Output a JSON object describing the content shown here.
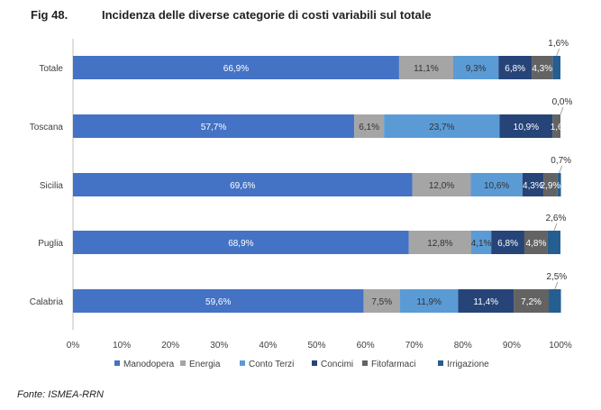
{
  "figure": {
    "number": "Fig 48.",
    "title": "Incidenza delle diverse categorie di costi variabili sul totale",
    "source": "Fonte: ISMEA-RRN"
  },
  "chart_data": {
    "type": "bar",
    "orientation": "horizontal",
    "stacked": true,
    "categories": [
      "Totale",
      "Toscana",
      "Sicilia",
      "Puglia",
      "Calabria"
    ],
    "series": [
      {
        "name": "Manodopera",
        "color": "#4472C4",
        "label_color": "#ffffff",
        "values": [
          66.9,
          57.7,
          69.6,
          68.9,
          59.6
        ],
        "labels": [
          "66,9%",
          "57,7%",
          "69,6%",
          "68,9%",
          "59,6%"
        ]
      },
      {
        "name": "Energia",
        "color": "#A5A5A5",
        "label_color": "#333333",
        "values": [
          11.1,
          6.1,
          12.0,
          12.8,
          7.5
        ],
        "labels": [
          "11,1%",
          "6,1%",
          "12,0%",
          "12,8%",
          "7,5%"
        ]
      },
      {
        "name": "Conto Terzi",
        "color": "#5B9BD5",
        "label_color": "#333333",
        "values": [
          9.3,
          23.7,
          10.6,
          4.1,
          11.9
        ],
        "labels": [
          "9,3%",
          "23,7%",
          "10,6%",
          "4,1%",
          "11,9%"
        ]
      },
      {
        "name": "Concimi",
        "color": "#264478",
        "label_color": "#ffffff",
        "values": [
          6.8,
          10.9,
          4.3,
          6.8,
          11.4
        ],
        "labels": [
          "6,8%",
          "10,9%",
          "4,3%",
          "6,8%",
          "11,4%"
        ]
      },
      {
        "name": "Fitofarmaci",
        "color": "#636363",
        "label_color": "#ffffff",
        "values": [
          4.3,
          1.6,
          2.9,
          4.8,
          7.2
        ],
        "labels": [
          "4,3%",
          "1,6",
          "2,9%",
          "4,8%",
          "7,2%"
        ]
      },
      {
        "name": "Irrigazione",
        "color": "#255E91",
        "label_color": "#333333",
        "values": [
          1.6,
          0.0,
          0.7,
          2.6,
          2.5
        ],
        "labels": [
          "1,6%",
          "0,0%",
          "0,7%",
          "2,6%",
          "2,5%"
        ]
      }
    ],
    "xlim": [
      0,
      100
    ],
    "x_ticks": [
      "0%",
      "10%",
      "20%",
      "30%",
      "40%",
      "50%",
      "60%",
      "70%",
      "80%",
      "90%",
      "100%"
    ],
    "grid": false,
    "legend_position": "bottom"
  }
}
